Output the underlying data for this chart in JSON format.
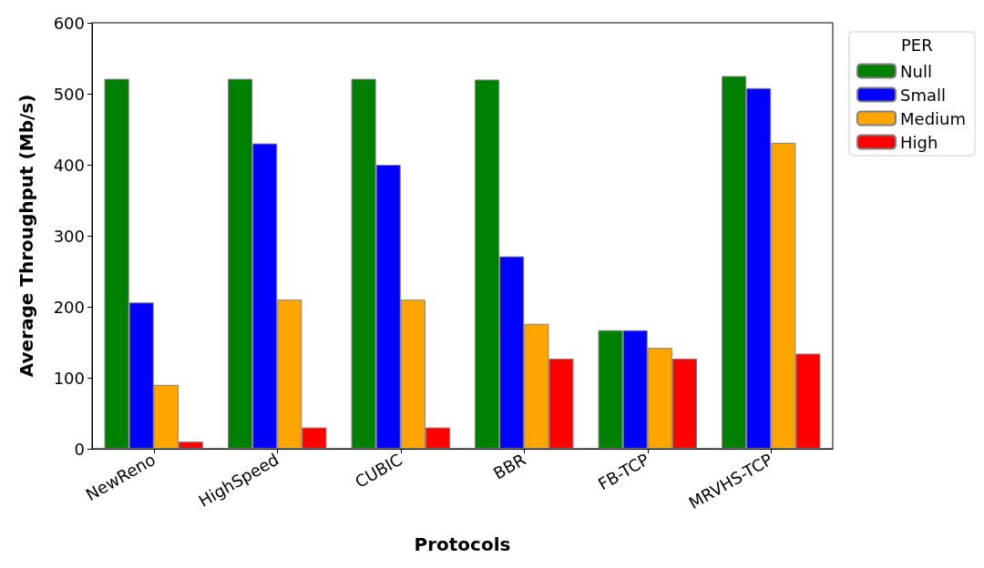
{
  "chart_data": {
    "type": "bar",
    "xlabel": "Protocols",
    "ylabel": "Average Throughput (Mb/s)",
    "legend_title": "PER",
    "legend": "top right",
    "grid": false,
    "categories": [
      "NewReno",
      "HighSpeed",
      "CUBIC",
      "BBR",
      "FB-TCP",
      "MRVHS-TCP"
    ],
    "ylim": [
      0,
      600
    ],
    "yticks": [
      0,
      100,
      200,
      300,
      400,
      500,
      600
    ],
    "series": [
      {
        "name": "Null",
        "color": "#008000",
        "values": [
          521,
          521,
          521,
          520,
          167,
          525
        ]
      },
      {
        "name": "Small",
        "color": "#0000ff",
        "values": [
          206,
          430,
          400,
          271,
          167,
          508
        ]
      },
      {
        "name": "Medium",
        "color": "#ffa500",
        "values": [
          90,
          210,
          210,
          176,
          142,
          431
        ]
      },
      {
        "name": "High",
        "color": "#ff0000",
        "values": [
          10,
          30,
          30,
          127,
          127,
          134
        ]
      }
    ]
  }
}
